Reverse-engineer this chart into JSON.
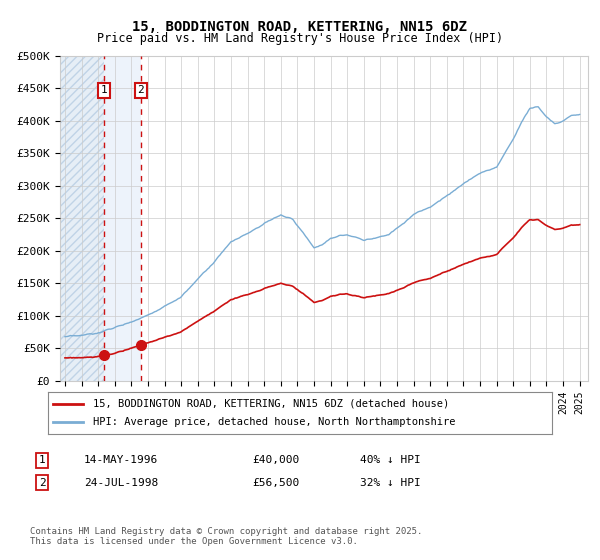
{
  "title": "15, BODDINGTON ROAD, KETTERING, NN15 6DZ",
  "subtitle": "Price paid vs. HM Land Registry's House Price Index (HPI)",
  "ylabel_ticks": [
    "£0",
    "£50K",
    "£100K",
    "£150K",
    "£200K",
    "£250K",
    "£300K",
    "£350K",
    "£400K",
    "£450K",
    "£500K"
  ],
  "ytick_values": [
    0,
    50000,
    100000,
    150000,
    200000,
    250000,
    300000,
    350000,
    400000,
    450000,
    500000
  ],
  "xlim": [
    1993.7,
    2025.5
  ],
  "ylim": [
    0,
    500000
  ],
  "transaction1": {
    "date": 1996.37,
    "price": 40000,
    "label": "1",
    "date_str": "14-MAY-1996",
    "price_str": "£40,000",
    "pct": "40% ↓ HPI"
  },
  "transaction2": {
    "date": 1998.56,
    "price": 56500,
    "label": "2",
    "date_str": "24-JUL-1998",
    "price_str": "£56,500",
    "pct": "32% ↓ HPI"
  },
  "legend_line1": "15, BODDINGTON ROAD, KETTERING, NN15 6DZ (detached house)",
  "legend_line2": "HPI: Average price, detached house, North Northamptonshire",
  "footnote": "Contains HM Land Registry data © Crown copyright and database right 2025.\nThis data is licensed under the Open Government Licence v3.0.",
  "hpi_color": "#7aadd4",
  "price_color": "#cc1111",
  "grid_color": "#cccccc",
  "hatch_region_end": 1996.37,
  "blue_region_start": 1996.37,
  "blue_region_end": 1998.56
}
